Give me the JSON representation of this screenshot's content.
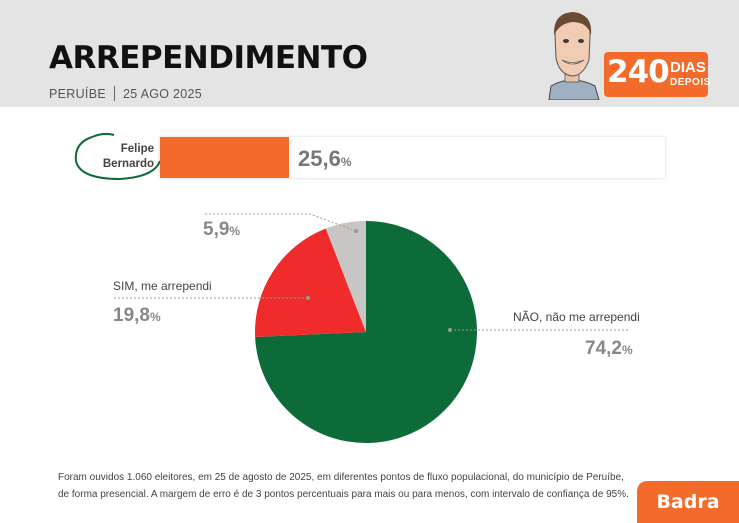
{
  "header": {
    "title": "ARREPENDIMENTO",
    "location": "PERUÍBE",
    "date": "25 AGO 2025",
    "badge_number": "240",
    "badge_line1": "DIAS",
    "badge_line2": "DEPOIS"
  },
  "candidate": {
    "name_line1": "Felipe",
    "name_line2": "Bernardo",
    "value": 25.6,
    "value_text": "25,6",
    "unit": "%"
  },
  "chart_data": {
    "type": "pie",
    "start_angle_deg": 0,
    "direction": "clockwise",
    "slices": [
      {
        "label": "NÃO, não me arrependi",
        "value": 74.2,
        "value_text": "74,2",
        "color": "#0d6b3a"
      },
      {
        "label": "SIM, me arrependi",
        "value": 19.8,
        "value_text": "19,8",
        "color": "#f02b2b"
      },
      {
        "label": "",
        "value": 5.9,
        "value_text": "5,9",
        "color": "#c8c6c4"
      }
    ],
    "unit": "%"
  },
  "footnote": {
    "line1": "Foram ouvidos 1.060 eleitores, em 25 de agosto de 2025, em diferentes pontos de fluxo populacional, do município de Peruíbe,",
    "line2": "de forma presencial. A margem de erro é de 3 pontos percentuais para mais ou para menos, com intervalo de confiança de 95%."
  },
  "brand": "Badra",
  "colors": {
    "accent": "#f26b2b",
    "header_bg": "#e4e4e4"
  }
}
